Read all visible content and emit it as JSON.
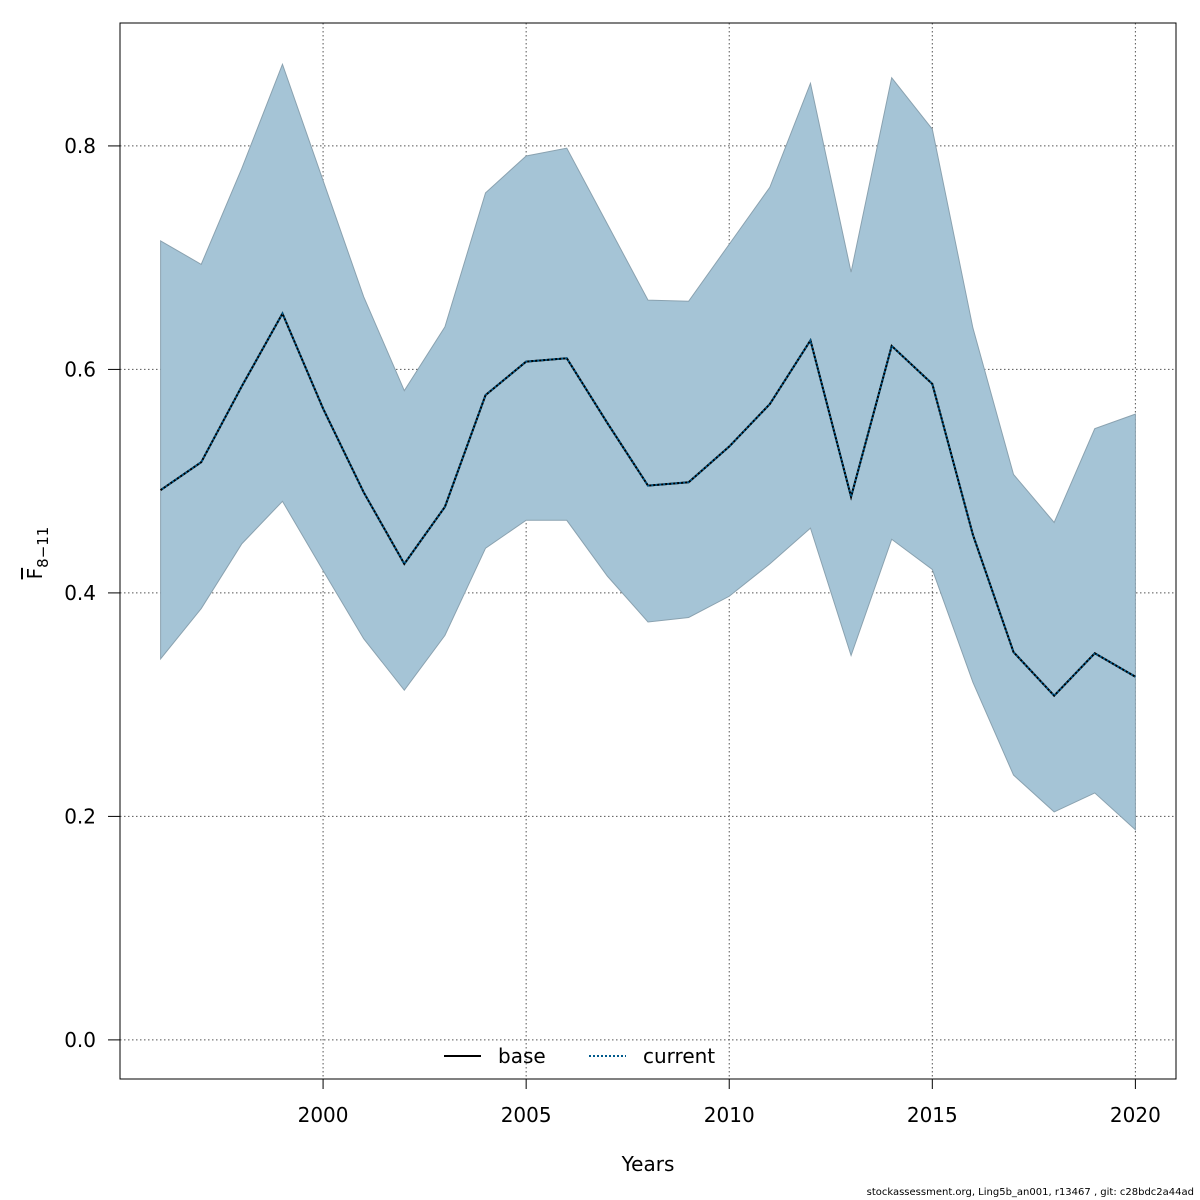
{
  "chart_data": {
    "type": "area",
    "xlabel": "Years",
    "ylabel": {
      "main": "F",
      "subscript": "8−11"
    },
    "x": [
      1996,
      1997,
      1998,
      1999,
      2000,
      2001,
      2002,
      2003,
      2004,
      2005,
      2006,
      2007,
      2008,
      2009,
      2010,
      2011,
      2012,
      2013,
      2014,
      2015,
      2016,
      2017,
      2018,
      2019,
      2020
    ],
    "xlim": [
      1995,
      2021
    ],
    "ylim": [
      -0.035,
      0.91
    ],
    "x_ticks": [
      2000,
      2005,
      2010,
      2015,
      2020
    ],
    "y_ticks": [
      0.0,
      0.2,
      0.4,
      0.6,
      0.8
    ],
    "y_tick_labels": [
      "0.0",
      "0.2",
      "0.4",
      "0.6",
      "0.8"
    ],
    "grid": true,
    "legend_position": "bottom-center",
    "series": [
      {
        "name": "base",
        "style": "solid",
        "color": "#000000",
        "values": [
          0.492,
          0.517,
          0.585,
          0.65,
          0.565,
          0.49,
          0.426,
          0.477,
          0.577,
          0.607,
          0.61,
          0.552,
          0.496,
          0.499,
          0.531,
          0.569,
          0.626,
          0.486,
          0.621,
          0.587,
          0.452,
          0.347,
          0.308,
          0.346,
          0.325
        ]
      },
      {
        "name": "current",
        "style": "dotted",
        "color": "#005a8c",
        "values": [
          0.492,
          0.517,
          0.585,
          0.65,
          0.565,
          0.49,
          0.426,
          0.477,
          0.577,
          0.607,
          0.61,
          0.552,
          0.496,
          0.499,
          0.531,
          0.569,
          0.626,
          0.486,
          0.621,
          0.587,
          0.452,
          0.347,
          0.308,
          0.346,
          0.325
        ]
      }
    ],
    "band": {
      "color": "#a5c4d6",
      "upper": [
        0.715,
        0.694,
        0.78,
        0.873,
        0.769,
        0.665,
        0.581,
        0.638,
        0.758,
        0.791,
        0.798,
        0.73,
        0.662,
        0.661,
        0.712,
        0.763,
        0.856,
        0.687,
        0.861,
        0.815,
        0.637,
        0.506,
        0.463,
        0.547,
        0.56
      ],
      "lower": [
        0.341,
        0.386,
        0.444,
        0.482,
        0.42,
        0.359,
        0.313,
        0.362,
        0.44,
        0.465,
        0.465,
        0.415,
        0.374,
        0.378,
        0.397,
        0.426,
        0.458,
        0.344,
        0.448,
        0.421,
        0.32,
        0.237,
        0.204,
        0.221,
        0.188
      ]
    }
  },
  "footer": "stockassessment.org, Ling5b_an001, r13467 , git: c28bdc2a44ad"
}
